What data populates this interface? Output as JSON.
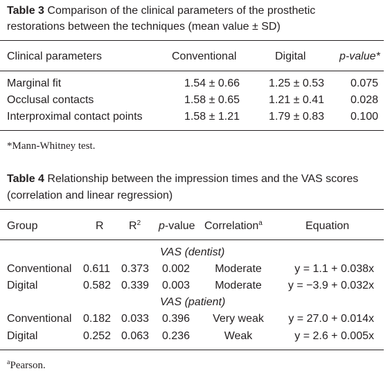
{
  "table3": {
    "label": "Table 3",
    "caption_line1": "Comparison of the clinical parameters of the prosthetic",
    "caption_line2": "restorations between the techniques (mean value ± SD)",
    "headers": {
      "param": "Clinical parameters",
      "conv": "Conventional",
      "dig": "Digital",
      "p_italic": "p",
      "p_rest": "-value*"
    },
    "rows": [
      {
        "param": "Marginal fit",
        "conv": "1.54 ± 0.66",
        "dig": "1.25 ± 0.53",
        "p": "0.075"
      },
      {
        "param": "Occlusal contacts",
        "conv": "1.58 ± 0.65",
        "dig": "1.21 ± 0.41",
        "p": "0.028"
      },
      {
        "param": "Interproximal contact points",
        "conv": "1.58 ± 1.21",
        "dig": "1.79 ± 0.83",
        "p": "0.100"
      }
    ],
    "footnote": "*Mann-Whitney test."
  },
  "table4": {
    "label": "Table 4",
    "caption_line1": "Relationship between the impression times and the VAS scores",
    "caption_line2": "(correlation and linear regression)",
    "headers": {
      "group": "Group",
      "r": "R",
      "r2_base": "R",
      "r2_sup": "2",
      "p_italic": "p",
      "p_rest": "-value",
      "corr": "Correlation",
      "corr_sup": "a",
      "eq": "Equation"
    },
    "section1": "VAS (dentist)",
    "section2": "VAS (patient)",
    "rows": [
      {
        "group": "Conventional",
        "r": "0.611",
        "r2": "0.373",
        "p": "0.002",
        "corr": "Moderate",
        "eq": "y = 1.1 + 0.038x"
      },
      {
        "group": "Digital",
        "r": "0.582",
        "r2": "0.339",
        "p": "0.003",
        "corr": "Moderate",
        "eq": "y = −3.9 + 0.032x"
      },
      {
        "group": "Conventional",
        "r": "0.182",
        "r2": "0.033",
        "p": "0.396",
        "corr": "Very weak",
        "eq": "y = 27.0 + 0.014x"
      },
      {
        "group": "Digital",
        "r": "0.252",
        "r2": "0.063",
        "p": "0.236",
        "corr": "Weak",
        "eq": "y = 2.6 + 0.005x"
      }
    ],
    "footnote_sup": "a",
    "footnote": "Pearson."
  }
}
